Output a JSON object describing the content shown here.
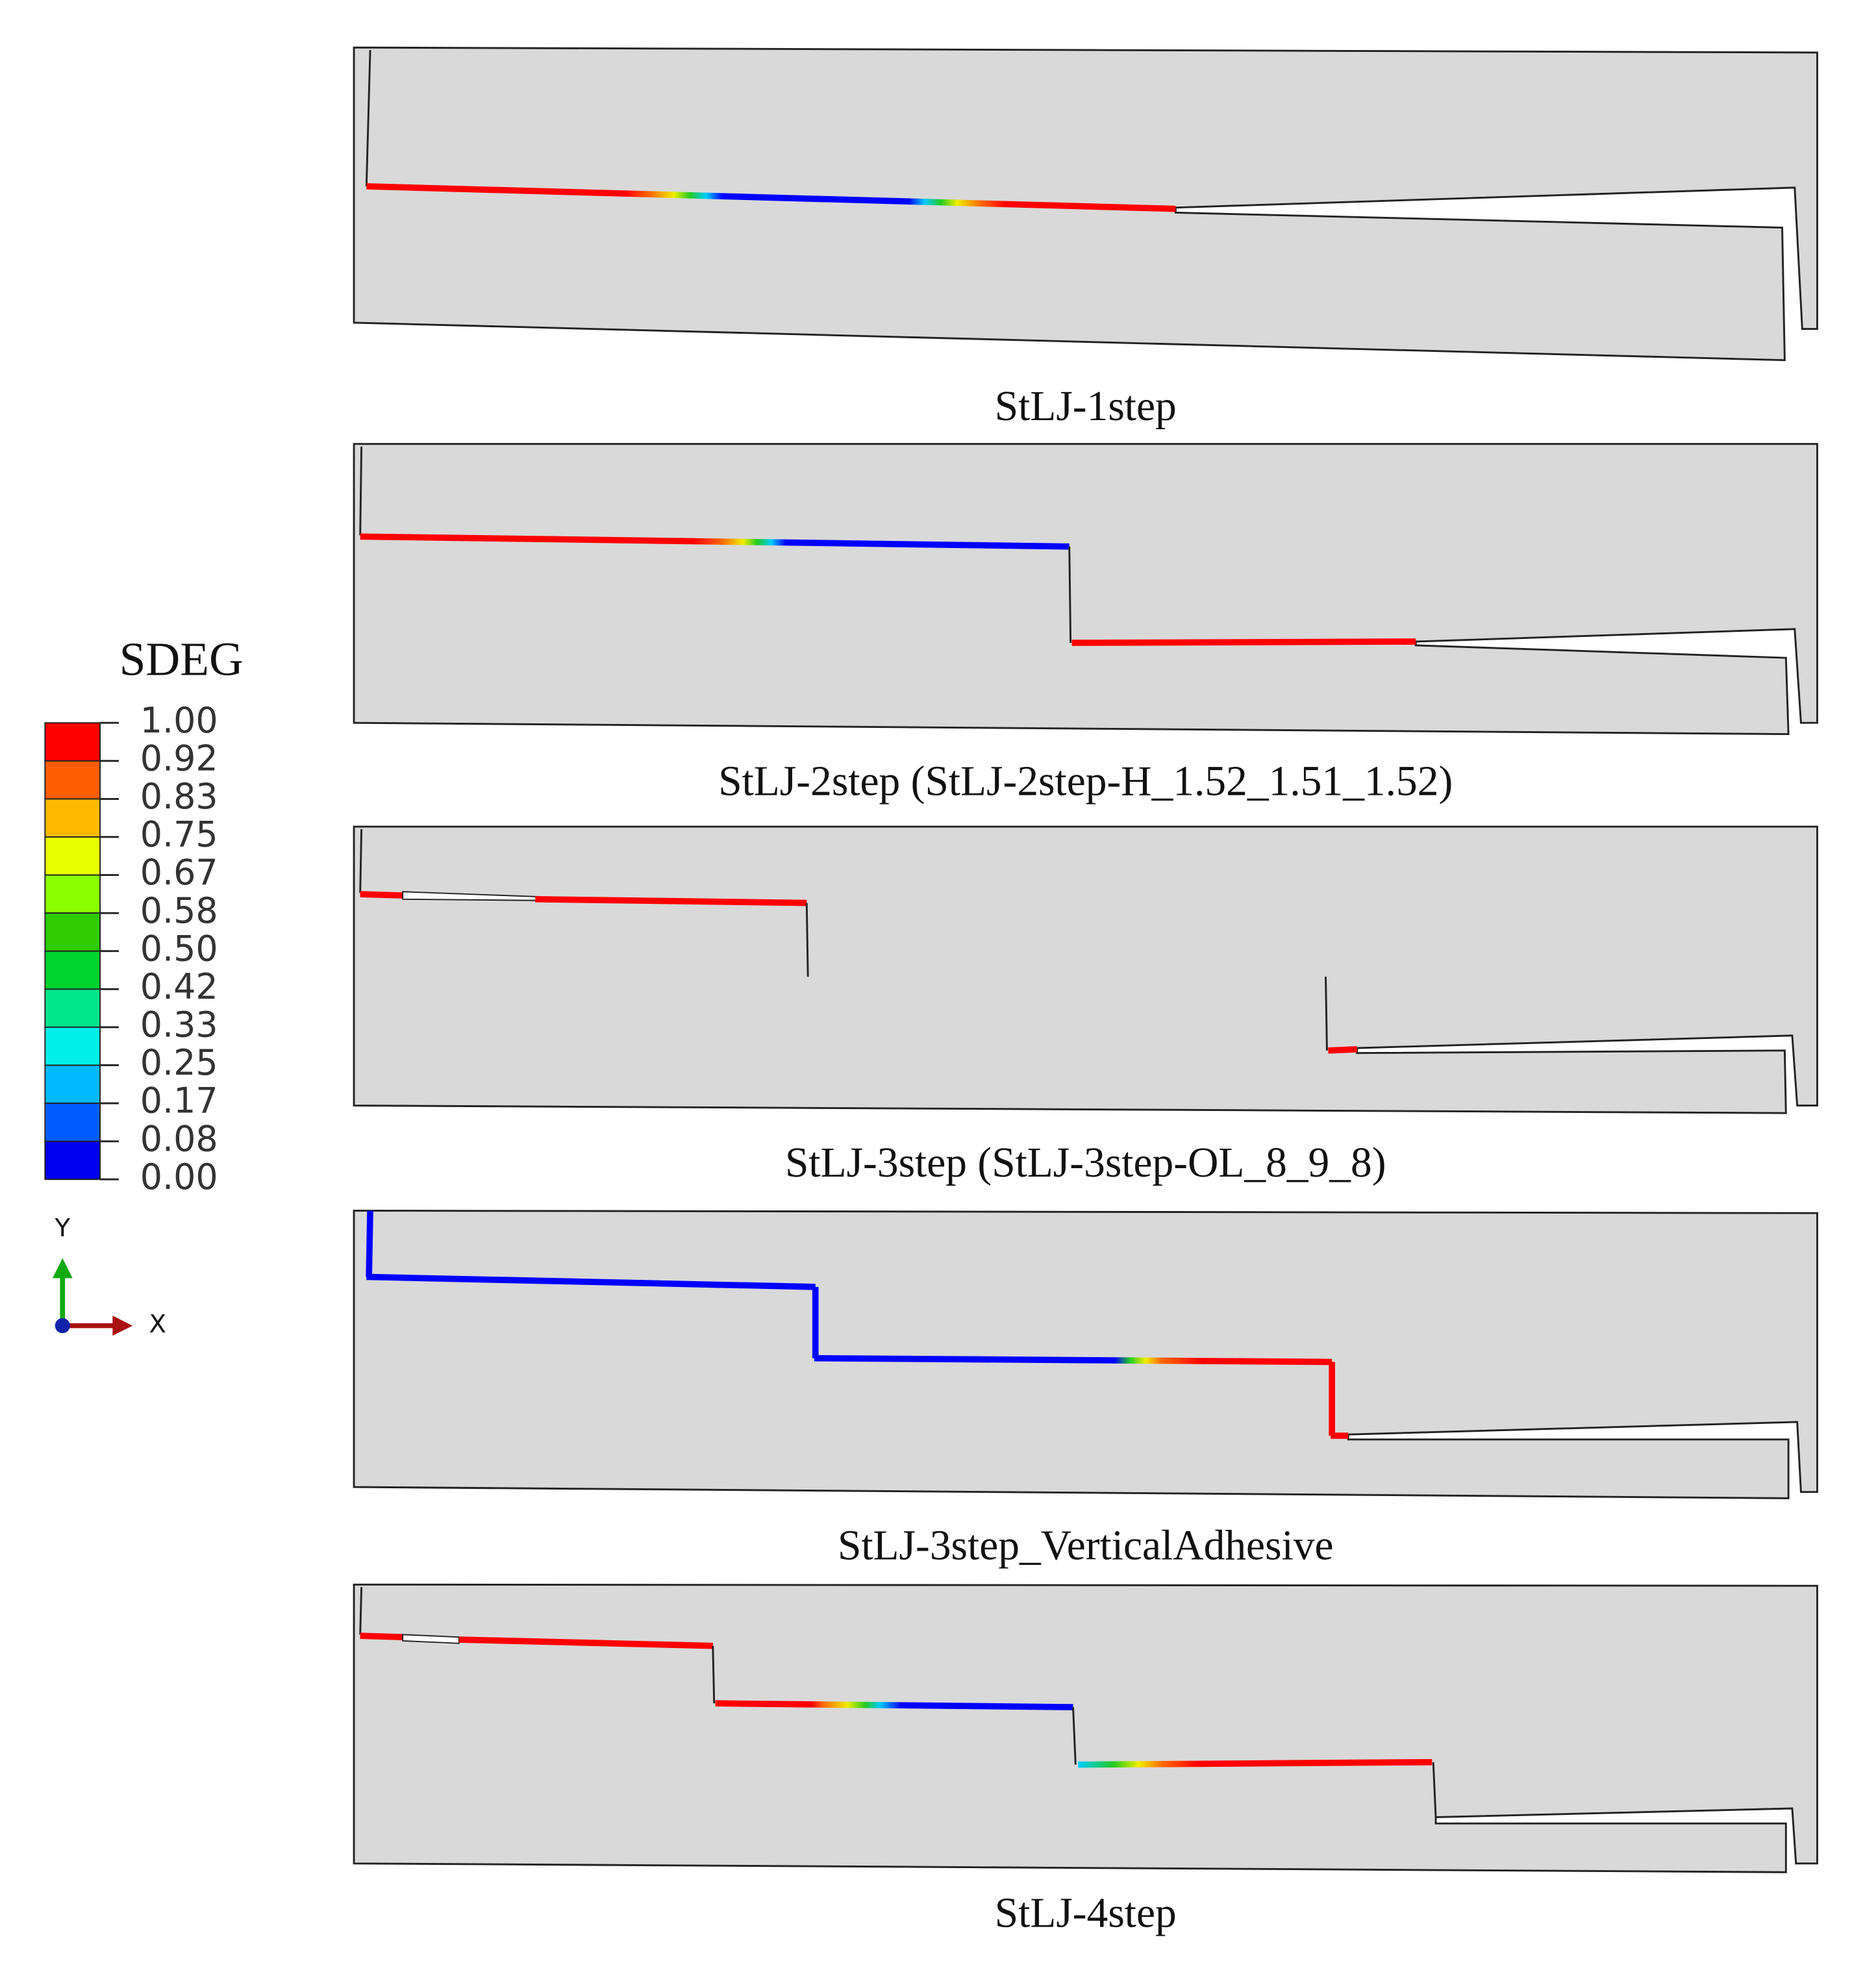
{
  "legend": {
    "title": "SDEG",
    "labels": [
      "1.00",
      "0.92",
      "0.83",
      "0.75",
      "0.67",
      "0.58",
      "0.50",
      "0.42",
      "0.33",
      "0.25",
      "0.17",
      "0.08",
      "0.00"
    ]
  },
  "axes": {
    "y": "Y",
    "x": "X"
  },
  "panels": [
    {
      "caption": "StLJ-1step"
    },
    {
      "caption": "StLJ-2step (StLJ-2step-H_1.52_1.51_1.52)"
    },
    {
      "caption": "StLJ-3step (StLJ-3step-OL_8_9_8)"
    },
    {
      "caption": "StLJ-3step_VerticalAdhesive"
    },
    {
      "caption": "StLJ-4step"
    }
  ]
}
